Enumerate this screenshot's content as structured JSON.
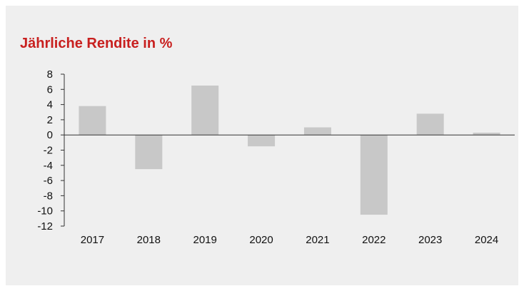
{
  "chart_data": {
    "type": "bar",
    "title": "Jährliche Rendite in %",
    "categories": [
      "2017",
      "2018",
      "2019",
      "2020",
      "2021",
      "2022",
      "2023",
      "2024"
    ],
    "series": [
      {
        "values": [
          3.8,
          -4.5,
          6.5,
          -1.5,
          1.0,
          -10.5,
          2.8,
          0.3
        ]
      }
    ],
    "ylim": [
      -12,
      8
    ],
    "yticks": [
      8,
      6,
      4,
      2,
      0,
      -2,
      -4,
      -6,
      -8,
      -10,
      -12
    ],
    "xlabel": "",
    "ylabel": "",
    "grid": false,
    "colors": {
      "bar": "#c8c8c8",
      "title": "#c8201f",
      "background": "#efefef",
      "axis": "#333333"
    }
  }
}
